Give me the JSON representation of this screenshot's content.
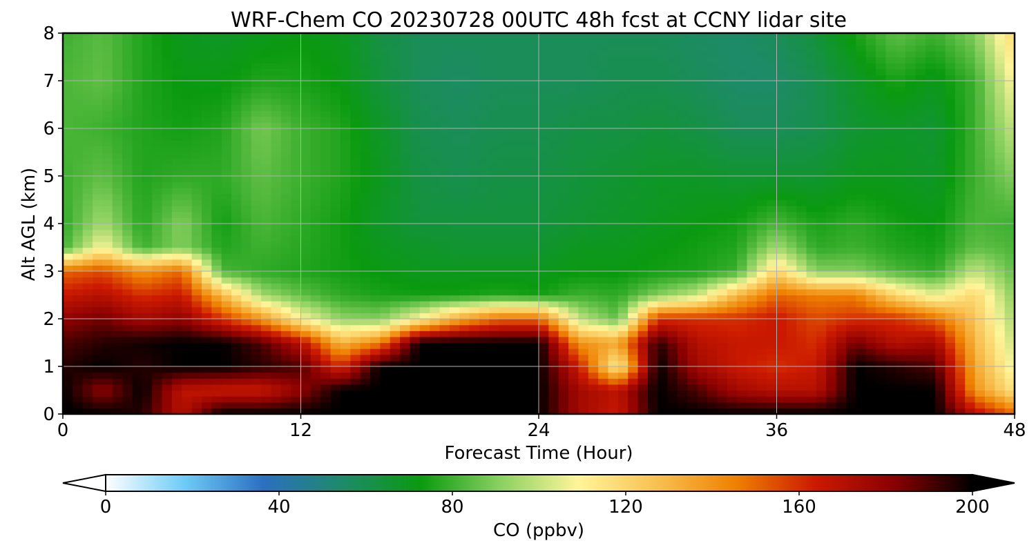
{
  "chart_data": {
    "type": "heatmap",
    "title": "WRF-Chem CO  20230728 00UTC 48h fcst at CCNY lidar site",
    "xlabel": "Forecast Time (Hour)",
    "ylabel": "Alt AGL (km)",
    "xlim": [
      0,
      48
    ],
    "ylim": [
      0,
      8
    ],
    "x_ticks": [
      "0",
      "12",
      "24",
      "36",
      "48"
    ],
    "y_ticks": [
      "0",
      "1",
      "2",
      "3",
      "4",
      "5",
      "6",
      "7",
      "8"
    ],
    "grid": true,
    "colorbar": {
      "label": "CO  (ppbv)",
      "ticks": [
        "0",
        "40",
        "80",
        "120",
        "160",
        "200"
      ],
      "range": [
        0,
        200
      ],
      "extend": "both",
      "colors": [
        "#ffffff",
        "#6ecbf6",
        "#2c6fc0",
        "#1e8a6a",
        "#0a9a10",
        "#8ad060",
        "#fff59a",
        "#f8c050",
        "#ef8000",
        "#cc1a00",
        "#8a0000",
        "#000000"
      ]
    },
    "hours": [
      0,
      2,
      4,
      6,
      8,
      10,
      12,
      14,
      16,
      18,
      20,
      22,
      24,
      26,
      28,
      30,
      32,
      34,
      36,
      38,
      40,
      42,
      44,
      46,
      48
    ],
    "altitudes_km": [
      0,
      0.5,
      1,
      1.5,
      2,
      2.5,
      3,
      3.5,
      4,
      5,
      6,
      7,
      8
    ],
    "co_ppbv": [
      [
        200,
        200,
        195,
        170,
        200,
        200,
        200,
        200,
        200,
        200,
        200,
        200,
        200,
        175,
        165,
        200,
        200,
        200,
        200,
        200,
        200,
        200,
        200,
        170,
        150
      ],
      [
        200,
        180,
        200,
        168,
        165,
        165,
        180,
        200,
        200,
        200,
        200,
        200,
        200,
        175,
        168,
        200,
        190,
        175,
        170,
        170,
        200,
        200,
        200,
        140,
        115
      ],
      [
        195,
        200,
        195,
        200,
        200,
        195,
        190,
        160,
        200,
        200,
        200,
        200,
        200,
        165,
        110,
        200,
        175,
        165,
        160,
        165,
        200,
        195,
        190,
        135,
        105
      ],
      [
        190,
        195,
        198,
        200,
        200,
        190,
        170,
        130,
        145,
        200,
        200,
        200,
        200,
        140,
        135,
        195,
        170,
        165,
        165,
        160,
        185,
        170,
        175,
        130,
        100
      ],
      [
        180,
        185,
        175,
        180,
        160,
        140,
        110,
        92,
        90,
        110,
        135,
        150,
        150,
        100,
        85,
        160,
        160,
        160,
        165,
        155,
        160,
        160,
        150,
        125,
        95
      ],
      [
        165,
        170,
        160,
        165,
        130,
        95,
        85,
        78,
        75,
        74,
        74,
        76,
        74,
        80,
        78,
        90,
        100,
        130,
        150,
        145,
        145,
        120,
        105,
        120,
        90
      ],
      [
        150,
        155,
        140,
        150,
        82,
        78,
        76,
        74,
        72,
        70,
        70,
        70,
        70,
        72,
        72,
        74,
        75,
        80,
        120,
        90,
        90,
        82,
        78,
        100,
        85
      ],
      [
        80,
        110,
        80,
        90,
        76,
        80,
        77,
        74,
        70,
        68,
        66,
        66,
        66,
        70,
        70,
        72,
        74,
        76,
        95,
        78,
        80,
        76,
        74,
        85,
        82
      ],
      [
        78,
        95,
        77,
        90,
        74,
        82,
        78,
        74,
        68,
        64,
        64,
        64,
        64,
        66,
        68,
        70,
        72,
        74,
        82,
        75,
        78,
        74,
        72,
        82,
        80
      ],
      [
        80,
        85,
        76,
        78,
        78,
        85,
        80,
        76,
        70,
        62,
        60,
        62,
        62,
        64,
        66,
        68,
        68,
        66,
        66,
        66,
        70,
        70,
        68,
        80,
        90
      ],
      [
        82,
        80,
        76,
        74,
        76,
        88,
        80,
        76,
        68,
        60,
        58,
        60,
        60,
        62,
        62,
        64,
        62,
        58,
        58,
        60,
        66,
        68,
        66,
        80,
        100
      ],
      [
        82,
        85,
        76,
        72,
        72,
        76,
        75,
        72,
        64,
        58,
        56,
        58,
        58,
        58,
        60,
        60,
        58,
        55,
        55,
        60,
        68,
        75,
        70,
        80,
        110
      ],
      [
        80,
        84,
        76,
        70,
        68,
        70,
        72,
        70,
        62,
        58,
        58,
        58,
        58,
        58,
        58,
        58,
        56,
        55,
        58,
        64,
        75,
        85,
        80,
        90,
        120
      ]
    ]
  }
}
